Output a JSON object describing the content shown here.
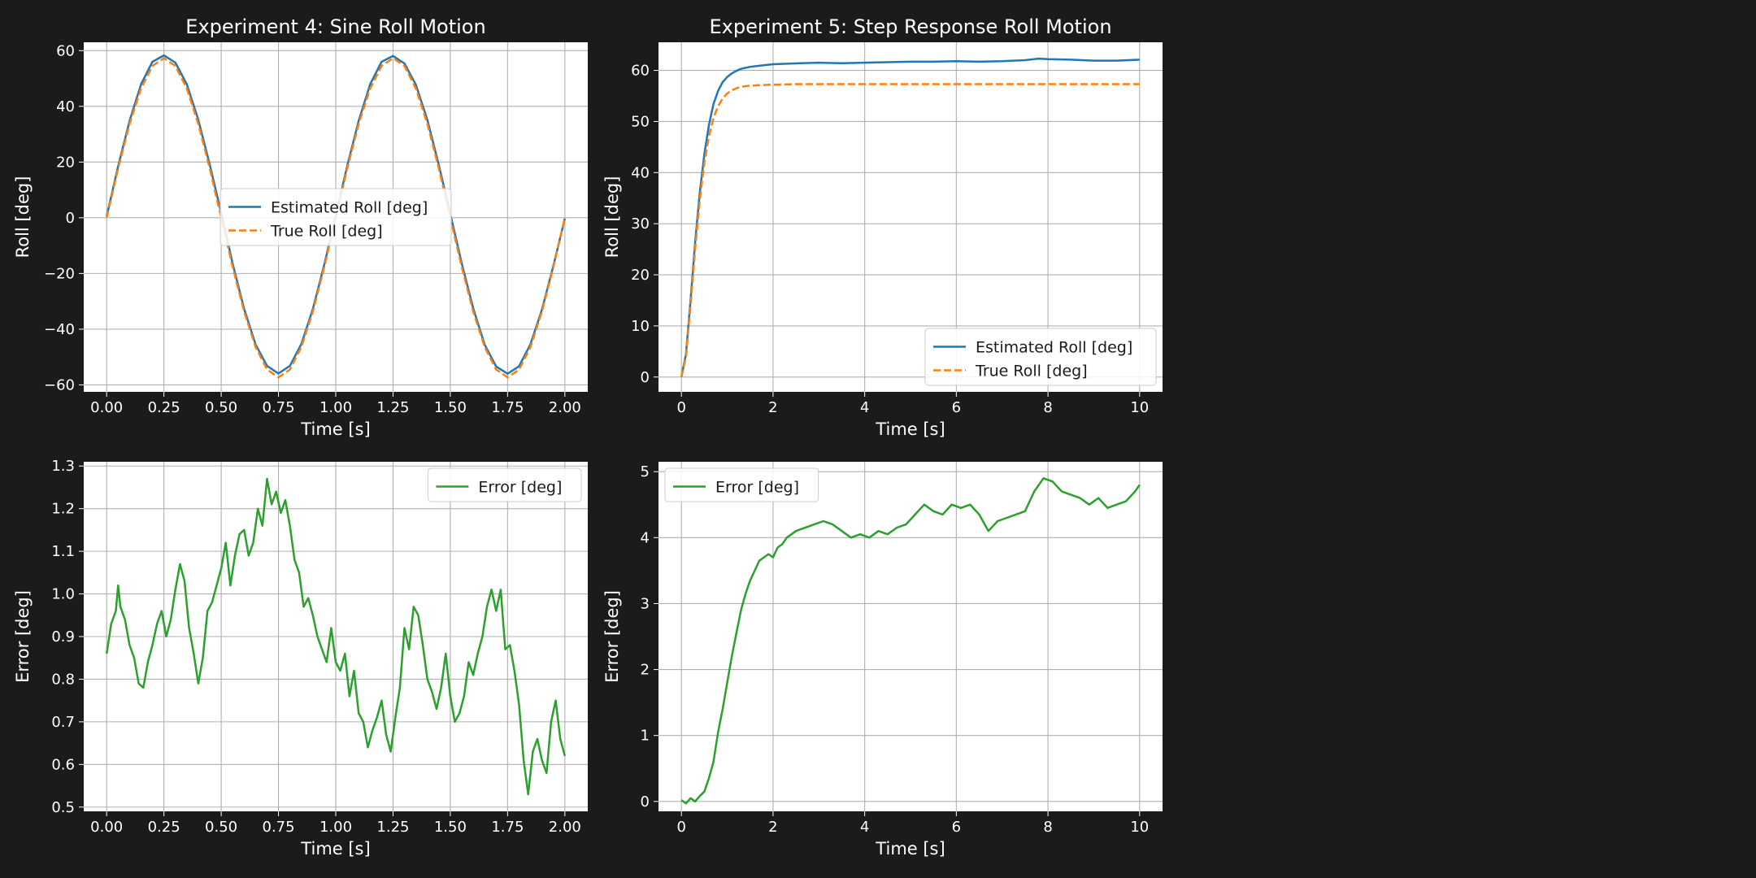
{
  "figure": {
    "background": "#1b1b1b",
    "text_color": "#ffffff"
  },
  "chart_data": [
    {
      "id": "exp4-roll",
      "type": "line",
      "title": "Experiment 4: Sine Roll Motion",
      "xlabel": "Time [s]",
      "ylabel": "Roll [deg]",
      "xlim": [
        -0.1,
        2.1
      ],
      "ylim": [
        -62.5,
        63.0
      ],
      "xticks": [
        0.0,
        0.25,
        0.5,
        0.75,
        1.0,
        1.25,
        1.5,
        1.75,
        2.0
      ],
      "xtick_labels": [
        "0.00",
        "0.25",
        "0.50",
        "0.75",
        "1.00",
        "1.25",
        "1.50",
        "1.75",
        "2.00"
      ],
      "yticks": [
        -60,
        -40,
        -20,
        0,
        20,
        40,
        60
      ],
      "ytick_labels": [
        "−60",
        "−40",
        "−20",
        "0",
        "20",
        "40",
        "60"
      ],
      "grid": true,
      "legend": "center",
      "series": [
        {
          "name": "Estimated Roll [deg]",
          "color": "#1f77b4",
          "style": "solid",
          "x": [
            0,
            0.05,
            0.1,
            0.15,
            0.2,
            0.25,
            0.3,
            0.35,
            0.4,
            0.45,
            0.5,
            0.55,
            0.6,
            0.65,
            0.7,
            0.75,
            0.8,
            0.85,
            0.9,
            0.95,
            1.0,
            1.05,
            1.1,
            1.15,
            1.2,
            1.25,
            1.3,
            1.35,
            1.4,
            1.45,
            1.5,
            1.55,
            1.6,
            1.65,
            1.7,
            1.75,
            1.8,
            1.85,
            1.9,
            1.95,
            2.0
          ],
          "y": [
            0.5,
            18.5,
            34.8,
            47.9,
            56.0,
            58.3,
            55.7,
            47.9,
            35.2,
            19.1,
            1.7,
            -16.5,
            -32.7,
            -45.5,
            -53.2,
            -55.9,
            -53.2,
            -45.3,
            -32.8,
            -16.8,
            0.8,
            18.6,
            34.8,
            47.9,
            56.0,
            58.1,
            55.4,
            47.7,
            35.1,
            18.9,
            1.4,
            -16.4,
            -32.5,
            -45.6,
            -53.4,
            -56.0,
            -53.3,
            -45.4,
            -33.0,
            -17.2,
            -0.3
          ]
        },
        {
          "name": "True Roll [deg]",
          "color": "#ff7f0e",
          "style": "dashed",
          "x": [
            0,
            0.05,
            0.1,
            0.15,
            0.2,
            0.25,
            0.3,
            0.35,
            0.4,
            0.45,
            0.5,
            0.55,
            0.6,
            0.65,
            0.7,
            0.75,
            0.8,
            0.85,
            0.9,
            0.95,
            1.0,
            1.05,
            1.1,
            1.15,
            1.2,
            1.25,
            1.3,
            1.35,
            1.4,
            1.45,
            1.5,
            1.55,
            1.6,
            1.65,
            1.7,
            1.75,
            1.8,
            1.85,
            1.9,
            1.95,
            2.0
          ],
          "y": [
            0.0,
            17.7,
            33.7,
            46.4,
            54.5,
            57.3,
            54.5,
            46.4,
            33.7,
            17.7,
            0.0,
            -17.7,
            -33.7,
            -46.4,
            -54.5,
            -57.3,
            -54.5,
            -46.4,
            -33.7,
            -17.7,
            0.0,
            17.7,
            33.7,
            46.4,
            54.5,
            57.3,
            54.5,
            46.4,
            33.7,
            17.7,
            0.0,
            -17.7,
            -33.7,
            -46.4,
            -54.5,
            -57.3,
            -54.5,
            -46.4,
            -33.7,
            -17.7,
            0.0
          ]
        }
      ]
    },
    {
      "id": "exp5-roll",
      "type": "line",
      "title": "Experiment 5: Step Response Roll Motion",
      "xlabel": "Time [s]",
      "ylabel": "Roll [deg]",
      "xlim": [
        -0.5,
        10.5
      ],
      "ylim": [
        -2.9,
        65.5
      ],
      "xticks": [
        0,
        2,
        4,
        6,
        8,
        10
      ],
      "xtick_labels": [
        "0",
        "2",
        "4",
        "6",
        "8",
        "10"
      ],
      "yticks": [
        0,
        10,
        20,
        30,
        40,
        50,
        60
      ],
      "ytick_labels": [
        "0",
        "10",
        "20",
        "30",
        "40",
        "50",
        "60"
      ],
      "grid": true,
      "legend": "lower right",
      "series": [
        {
          "name": "Estimated Roll [deg]",
          "color": "#1f77b4",
          "style": "solid",
          "x": [
            0,
            0.1,
            0.2,
            0.3,
            0.4,
            0.5,
            0.6,
            0.7,
            0.8,
            0.9,
            1.0,
            1.1,
            1.2,
            1.3,
            1.5,
            1.7,
            2.0,
            2.3,
            2.6,
            3.0,
            3.5,
            4.0,
            4.5,
            5.0,
            5.5,
            6.0,
            6.5,
            7.0,
            7.5,
            7.8,
            8.0,
            8.5,
            9.0,
            9.5,
            10.0
          ],
          "y": [
            0,
            4.5,
            15.2,
            26.4,
            36.0,
            43.6,
            49.3,
            53.4,
            56.0,
            57.7,
            58.7,
            59.4,
            59.9,
            60.3,
            60.7,
            60.9,
            61.2,
            61.3,
            61.4,
            61.5,
            61.4,
            61.5,
            61.6,
            61.7,
            61.7,
            61.8,
            61.7,
            61.8,
            62.0,
            62.3,
            62.2,
            62.1,
            61.9,
            61.9,
            62.1
          ]
        },
        {
          "name": "True Roll [deg]",
          "color": "#ff7f0e",
          "style": "dashed",
          "x": [
            0,
            0.1,
            0.2,
            0.3,
            0.4,
            0.5,
            0.6,
            0.7,
            0.8,
            0.9,
            1.0,
            1.1,
            1.2,
            1.3,
            1.5,
            1.7,
            2.0,
            2.5,
            3.0,
            4.0,
            5.0,
            6.0,
            7.0,
            8.0,
            9.0,
            10.0
          ],
          "y": [
            0,
            4.0,
            14.2,
            25.1,
            34.5,
            41.9,
            47.1,
            50.7,
            53.0,
            54.5,
            55.5,
            56.1,
            56.5,
            56.8,
            57.0,
            57.1,
            57.2,
            57.3,
            57.3,
            57.3,
            57.3,
            57.3,
            57.3,
            57.3,
            57.3,
            57.3
          ]
        }
      ]
    },
    {
      "id": "exp4-error",
      "type": "line",
      "title": "",
      "xlabel": "Time [s]",
      "ylabel": "Error [deg]",
      "xlim": [
        -0.1,
        2.1
      ],
      "ylim": [
        0.49,
        1.31
      ],
      "xticks": [
        0.0,
        0.25,
        0.5,
        0.75,
        1.0,
        1.25,
        1.5,
        1.75,
        2.0
      ],
      "xtick_labels": [
        "0.00",
        "0.25",
        "0.50",
        "0.75",
        "1.00",
        "1.25",
        "1.50",
        "1.75",
        "2.00"
      ],
      "yticks": [
        0.5,
        0.6,
        0.7,
        0.8,
        0.9,
        1.0,
        1.1,
        1.2,
        1.3
      ],
      "ytick_labels": [
        "0.5",
        "0.6",
        "0.7",
        "0.8",
        "0.9",
        "1.0",
        "1.1",
        "1.2",
        "1.3"
      ],
      "grid": true,
      "legend": "upper right",
      "series": [
        {
          "name": "Error [deg]",
          "color": "#2ca02c",
          "style": "solid",
          "x": [
            0,
            0.02,
            0.04,
            0.05,
            0.06,
            0.08,
            0.1,
            0.12,
            0.14,
            0.16,
            0.18,
            0.2,
            0.22,
            0.24,
            0.26,
            0.28,
            0.3,
            0.32,
            0.34,
            0.36,
            0.38,
            0.4,
            0.42,
            0.44,
            0.46,
            0.48,
            0.5,
            0.52,
            0.54,
            0.56,
            0.58,
            0.6,
            0.62,
            0.64,
            0.66,
            0.68,
            0.7,
            0.72,
            0.74,
            0.76,
            0.78,
            0.8,
            0.82,
            0.84,
            0.86,
            0.88,
            0.9,
            0.92,
            0.94,
            0.96,
            0.98,
            1.0,
            1.02,
            1.04,
            1.06,
            1.08,
            1.1,
            1.12,
            1.14,
            1.16,
            1.18,
            1.2,
            1.22,
            1.24,
            1.26,
            1.28,
            1.3,
            1.32,
            1.34,
            1.36,
            1.38,
            1.4,
            1.42,
            1.44,
            1.46,
            1.48,
            1.5,
            1.52,
            1.54,
            1.56,
            1.58,
            1.6,
            1.62,
            1.64,
            1.66,
            1.68,
            1.7,
            1.72,
            1.74,
            1.76,
            1.78,
            1.8,
            1.82,
            1.84,
            1.86,
            1.88,
            1.9,
            1.92,
            1.94,
            1.96,
            1.98,
            2.0
          ],
          "y": [
            0.86,
            0.93,
            0.96,
            1.02,
            0.97,
            0.94,
            0.88,
            0.85,
            0.79,
            0.78,
            0.84,
            0.88,
            0.93,
            0.96,
            0.9,
            0.94,
            1.01,
            1.07,
            1.03,
            0.92,
            0.86,
            0.79,
            0.85,
            0.96,
            0.98,
            1.02,
            1.06,
            1.12,
            1.02,
            1.09,
            1.14,
            1.15,
            1.09,
            1.12,
            1.2,
            1.16,
            1.27,
            1.21,
            1.24,
            1.19,
            1.22,
            1.16,
            1.08,
            1.05,
            0.97,
            0.99,
            0.95,
            0.9,
            0.87,
            0.84,
            0.92,
            0.84,
            0.82,
            0.86,
            0.76,
            0.82,
            0.72,
            0.7,
            0.64,
            0.68,
            0.71,
            0.75,
            0.67,
            0.63,
            0.71,
            0.78,
            0.92,
            0.87,
            0.97,
            0.95,
            0.88,
            0.8,
            0.77,
            0.73,
            0.78,
            0.86,
            0.76,
            0.7,
            0.72,
            0.76,
            0.84,
            0.81,
            0.86,
            0.9,
            0.97,
            1.01,
            0.96,
            1.01,
            0.87,
            0.88,
            0.82,
            0.74,
            0.61,
            0.53,
            0.63,
            0.66,
            0.61,
            0.58,
            0.7,
            0.75,
            0.66,
            0.62
          ]
        }
      ]
    },
    {
      "id": "exp5-error",
      "type": "line",
      "title": "",
      "xlabel": "Time [s]",
      "ylabel": "Error [deg]",
      "xlim": [
        -0.5,
        10.5
      ],
      "ylim": [
        -0.15,
        5.15
      ],
      "xticks": [
        0,
        2,
        4,
        6,
        8,
        10
      ],
      "xtick_labels": [
        "0",
        "2",
        "4",
        "6",
        "8",
        "10"
      ],
      "yticks": [
        0,
        1,
        2,
        3,
        4,
        5
      ],
      "ytick_labels": [
        "0",
        "1",
        "2",
        "3",
        "4",
        "5"
      ],
      "grid": true,
      "legend": "upper left",
      "series": [
        {
          "name": "Error [deg]",
          "color": "#2ca02c",
          "style": "solid",
          "x": [
            0,
            0.1,
            0.2,
            0.3,
            0.4,
            0.5,
            0.6,
            0.7,
            0.8,
            0.9,
            1.0,
            1.1,
            1.2,
            1.3,
            1.4,
            1.5,
            1.6,
            1.7,
            1.8,
            1.9,
            2.0,
            2.1,
            2.2,
            2.3,
            2.5,
            2.7,
            2.9,
            3.1,
            3.3,
            3.5,
            3.7,
            3.9,
            4.1,
            4.3,
            4.5,
            4.7,
            4.9,
            5.1,
            5.3,
            5.5,
            5.7,
            5.9,
            6.1,
            6.3,
            6.5,
            6.7,
            6.9,
            7.1,
            7.3,
            7.5,
            7.7,
            7.9,
            8.1,
            8.3,
            8.5,
            8.7,
            8.9,
            9.1,
            9.3,
            9.5,
            9.7,
            9.9,
            10.0
          ],
          "y": [
            0.02,
            -0.03,
            0.05,
            0.0,
            0.08,
            0.15,
            0.35,
            0.6,
            1.05,
            1.4,
            1.8,
            2.2,
            2.55,
            2.9,
            3.15,
            3.35,
            3.5,
            3.65,
            3.7,
            3.75,
            3.7,
            3.85,
            3.9,
            4.0,
            4.1,
            4.15,
            4.2,
            4.25,
            4.2,
            4.1,
            4.0,
            4.05,
            4.0,
            4.1,
            4.05,
            4.15,
            4.2,
            4.35,
            4.5,
            4.4,
            4.35,
            4.5,
            4.45,
            4.5,
            4.35,
            4.1,
            4.25,
            4.3,
            4.35,
            4.4,
            4.7,
            4.9,
            4.85,
            4.7,
            4.65,
            4.6,
            4.5,
            4.6,
            4.45,
            4.5,
            4.55,
            4.7,
            4.8
          ]
        }
      ]
    }
  ]
}
